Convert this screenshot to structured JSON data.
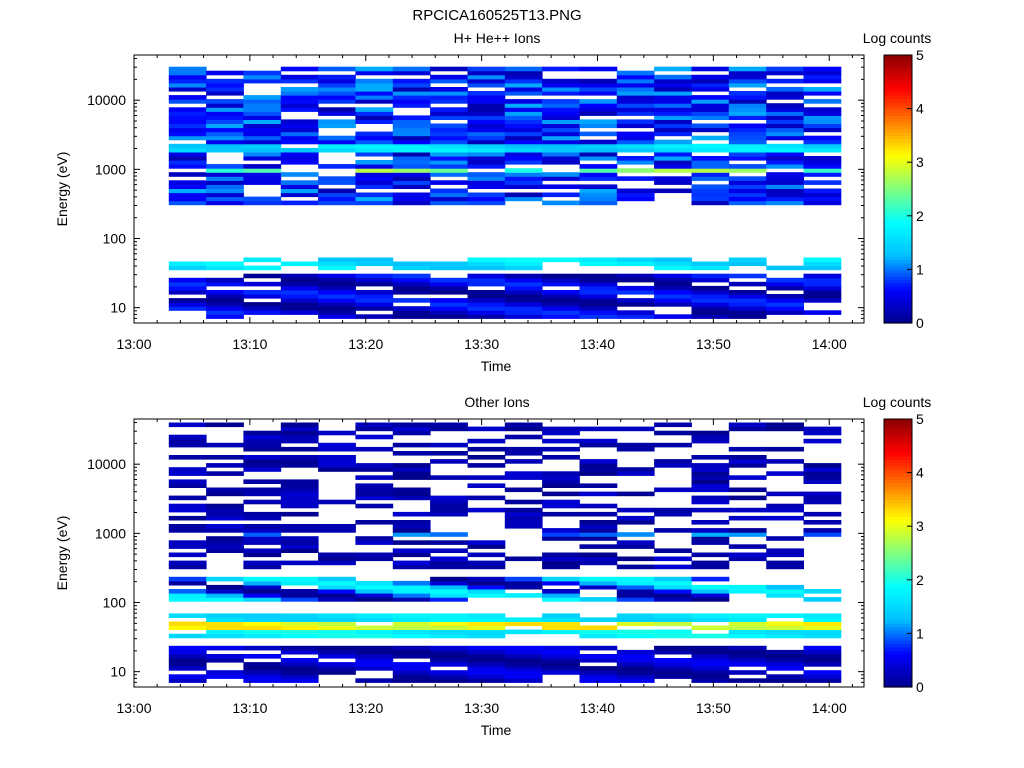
{
  "figure": {
    "title": "RPCICA160525T13.PNG"
  },
  "panels": [
    {
      "title": "H+ He++ Ions",
      "xlabel": "Time",
      "ylabel": "Energy (eV)",
      "cbar_label": "Log counts"
    },
    {
      "title": "Other Ions",
      "xlabel": "Time",
      "ylabel": "Energy (eV)",
      "cbar_label": "Log counts"
    }
  ],
  "colors": {
    "colormap": [
      "#00008b",
      "#0000ff",
      "#00bfff",
      "#00ffff",
      "#7fff7f",
      "#ffff00",
      "#ff7f00",
      "#ff0000",
      "#8b0000"
    ],
    "axis": "#000000",
    "background": "#ffffff"
  },
  "chart_data": [
    {
      "type": "heatmap",
      "title": "H+ He++ Ions",
      "xlabel": "Time",
      "ylabel": "Energy (eV)",
      "x_ticks": [
        "13:00",
        "13:10",
        "13:20",
        "13:30",
        "13:40",
        "13:50",
        "14:00"
      ],
      "y_ticks": [
        "10",
        "100",
        "1000",
        "10000"
      ],
      "y_scale": "log",
      "y_range_eV": [
        6,
        45000
      ],
      "x_range": [
        "13:00",
        "14:03"
      ],
      "data_time_range": [
        "13:03",
        "14:01"
      ],
      "colorbar": {
        "label": "Log counts",
        "ticks": [
          "0",
          "1",
          "2",
          "3",
          "4",
          "5"
        ],
        "range": [
          0,
          5
        ]
      },
      "bands": [
        {
          "energy_eV": [
            850,
            1050
          ],
          "log_counts": [
            2.0,
            2.8
          ],
          "note": "peak ~2.8 near 13:42-13:58"
        },
        {
          "energy_eV": [
            1800,
            2200
          ],
          "log_counts": [
            1.3,
            1.8
          ]
        },
        {
          "energy_eV": [
            35,
            55
          ],
          "log_counts": [
            1.3,
            1.9
          ]
        },
        {
          "energy_eV": [
            300,
            30000
          ],
          "log_counts": [
            0.2,
            1.2
          ]
        },
        {
          "energy_eV": [
            7,
            30
          ],
          "log_counts": [
            0,
            0.8
          ]
        }
      ]
    },
    {
      "type": "heatmap",
      "title": "Other Ions",
      "xlabel": "Time",
      "ylabel": "Energy (eV)",
      "x_ticks": [
        "13:00",
        "13:10",
        "13:20",
        "13:30",
        "13:40",
        "13:50",
        "14:00"
      ],
      "y_ticks": [
        "10",
        "100",
        "1000",
        "10000"
      ],
      "y_scale": "log",
      "y_range_eV": [
        6,
        45000
      ],
      "x_range": [
        "13:00",
        "14:03"
      ],
      "data_time_range": [
        "13:03",
        "14:01"
      ],
      "colorbar": {
        "label": "Log counts",
        "ticks": [
          "0",
          "1",
          "2",
          "3",
          "4",
          "5"
        ],
        "range": [
          0,
          5
        ]
      },
      "bands": [
        {
          "energy_eV": [
            38,
            52
          ],
          "log_counts": [
            2.8,
            3.3
          ],
          "note": "strongest band"
        },
        {
          "energy_eV": [
            30,
            38
          ],
          "log_counts": [
            1.5,
            2.0
          ]
        },
        {
          "energy_eV": [
            55,
            70
          ],
          "log_counts": [
            1.4,
            1.8
          ]
        },
        {
          "energy_eV": [
            100,
            250
          ],
          "log_counts": [
            0,
            1.9
          ],
          "note": "patch ~1.9 near 13:45"
        },
        {
          "energy_eV": [
            900,
            1100
          ],
          "log_counts": [
            0.8,
            1.2
          ],
          "note": "13:40-13:50"
        },
        {
          "energy_eV": [
            300,
            40000
          ],
          "log_counts": [
            0,
            0.4
          ],
          "note": "sparse"
        },
        {
          "energy_eV": [
            7,
            25
          ],
          "log_counts": [
            0,
            0.6
          ]
        }
      ]
    }
  ]
}
